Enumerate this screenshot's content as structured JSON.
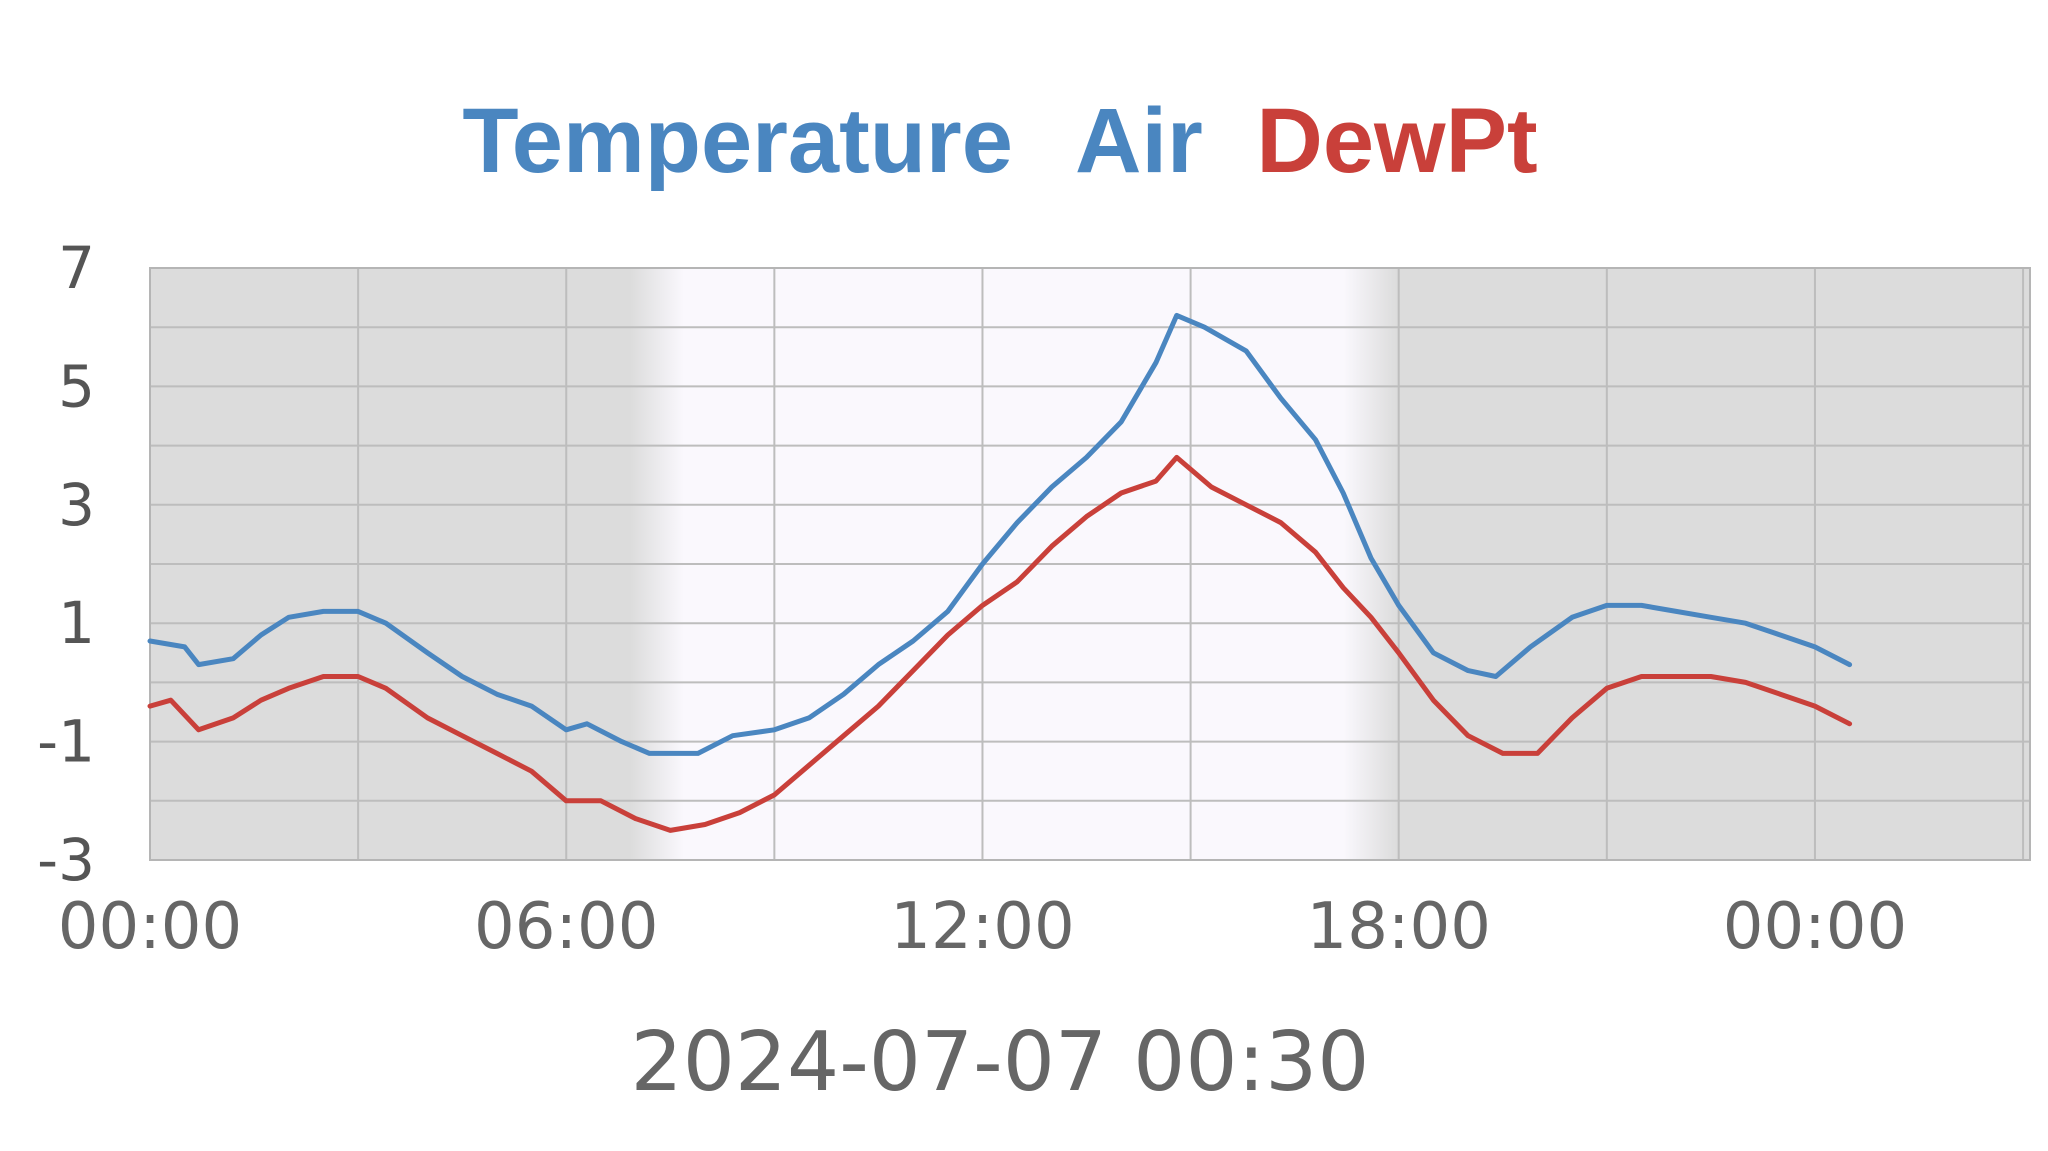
{
  "title": {
    "word1": "Temperature",
    "word2": "Air",
    "word3": "DewPt"
  },
  "timestamp": "2024-07-07 00:30",
  "colors": {
    "air": "#4a86c0",
    "dewpt": "#c9403a",
    "night_bg": "#dcdcdc",
    "day_bg": "#faf8fd",
    "grid": "#bdbdbd",
    "axis_text": "#555555"
  },
  "chart_data": {
    "type": "line",
    "ylim": [
      -3,
      7
    ],
    "xlim_hours": [
      0,
      27.1
    ],
    "grid": true,
    "yticks": [
      {
        "value": 7,
        "label": "7"
      },
      {
        "value": 5,
        "label": "5"
      },
      {
        "value": 3,
        "label": "3"
      },
      {
        "value": 1,
        "label": "1"
      },
      {
        "value": -1,
        "label": "-1"
      },
      {
        "value": -3,
        "label": "-3"
      }
    ],
    "xticks": [
      {
        "hour": 0,
        "label": "00:00"
      },
      {
        "hour": 6,
        "label": "06:00"
      },
      {
        "hour": 12,
        "label": "12:00"
      },
      {
        "hour": 18,
        "label": "18:00"
      },
      {
        "hour": 24,
        "label": "00:00"
      }
    ],
    "daylight_hours": [
      7.5,
      17.4
    ],
    "series": [
      {
        "name": "Air",
        "color": "#4a86c0",
        "points": [
          [
            0.0,
            0.7
          ],
          [
            0.5,
            0.6
          ],
          [
            0.7,
            0.3
          ],
          [
            1.2,
            0.4
          ],
          [
            1.6,
            0.8
          ],
          [
            2.0,
            1.1
          ],
          [
            2.5,
            1.2
          ],
          [
            3.0,
            1.2
          ],
          [
            3.4,
            1.0
          ],
          [
            4.0,
            0.5
          ],
          [
            4.5,
            0.1
          ],
          [
            5.0,
            -0.2
          ],
          [
            5.5,
            -0.4
          ],
          [
            6.0,
            -0.8
          ],
          [
            6.3,
            -0.7
          ],
          [
            6.8,
            -1.0
          ],
          [
            7.2,
            -1.2
          ],
          [
            7.9,
            -1.2
          ],
          [
            8.4,
            -0.9
          ],
          [
            9.0,
            -0.8
          ],
          [
            9.5,
            -0.6
          ],
          [
            10.0,
            -0.2
          ],
          [
            10.5,
            0.3
          ],
          [
            11.0,
            0.7
          ],
          [
            11.5,
            1.2
          ],
          [
            12.0,
            2.0
          ],
          [
            12.5,
            2.7
          ],
          [
            13.0,
            3.3
          ],
          [
            13.5,
            3.8
          ],
          [
            14.0,
            4.4
          ],
          [
            14.5,
            5.4
          ],
          [
            14.8,
            6.2
          ],
          [
            15.2,
            6.0
          ],
          [
            15.8,
            5.6
          ],
          [
            16.3,
            4.8
          ],
          [
            16.8,
            4.1
          ],
          [
            17.2,
            3.2
          ],
          [
            17.6,
            2.1
          ],
          [
            18.0,
            1.3
          ],
          [
            18.5,
            0.5
          ],
          [
            19.0,
            0.2
          ],
          [
            19.4,
            0.1
          ],
          [
            19.9,
            0.6
          ],
          [
            20.5,
            1.1
          ],
          [
            21.0,
            1.3
          ],
          [
            21.5,
            1.3
          ],
          [
            22.0,
            1.2
          ],
          [
            22.5,
            1.1
          ],
          [
            23.0,
            1.0
          ],
          [
            23.5,
            0.8
          ],
          [
            24.0,
            0.6
          ],
          [
            24.5,
            0.3
          ]
        ]
      },
      {
        "name": "DewPt",
        "color": "#c9403a",
        "points": [
          [
            0.0,
            -0.4
          ],
          [
            0.3,
            -0.3
          ],
          [
            0.7,
            -0.8
          ],
          [
            1.2,
            -0.6
          ],
          [
            1.6,
            -0.3
          ],
          [
            2.0,
            -0.1
          ],
          [
            2.5,
            0.1
          ],
          [
            3.0,
            0.1
          ],
          [
            3.4,
            -0.1
          ],
          [
            4.0,
            -0.6
          ],
          [
            4.5,
            -0.9
          ],
          [
            5.0,
            -1.2
          ],
          [
            5.5,
            -1.5
          ],
          [
            6.0,
            -2.0
          ],
          [
            6.5,
            -2.0
          ],
          [
            7.0,
            -2.3
          ],
          [
            7.5,
            -2.5
          ],
          [
            8.0,
            -2.4
          ],
          [
            8.5,
            -2.2
          ],
          [
            9.0,
            -1.9
          ],
          [
            9.5,
            -1.4
          ],
          [
            10.0,
            -0.9
          ],
          [
            10.5,
            -0.4
          ],
          [
            11.0,
            0.2
          ],
          [
            11.5,
            0.8
          ],
          [
            12.0,
            1.3
          ],
          [
            12.5,
            1.7
          ],
          [
            13.0,
            2.3
          ],
          [
            13.5,
            2.8
          ],
          [
            14.0,
            3.2
          ],
          [
            14.5,
            3.4
          ],
          [
            14.8,
            3.8
          ],
          [
            15.3,
            3.3
          ],
          [
            15.8,
            3.0
          ],
          [
            16.3,
            2.7
          ],
          [
            16.8,
            2.2
          ],
          [
            17.2,
            1.6
          ],
          [
            17.6,
            1.1
          ],
          [
            18.0,
            0.5
          ],
          [
            18.5,
            -0.3
          ],
          [
            19.0,
            -0.9
          ],
          [
            19.5,
            -1.2
          ],
          [
            20.0,
            -1.2
          ],
          [
            20.5,
            -0.6
          ],
          [
            21.0,
            -0.1
          ],
          [
            21.5,
            0.1
          ],
          [
            22.0,
            0.1
          ],
          [
            22.5,
            0.1
          ],
          [
            23.0,
            0.0
          ],
          [
            23.5,
            -0.2
          ],
          [
            24.0,
            -0.4
          ],
          [
            24.5,
            -0.7
          ]
        ]
      }
    ]
  }
}
